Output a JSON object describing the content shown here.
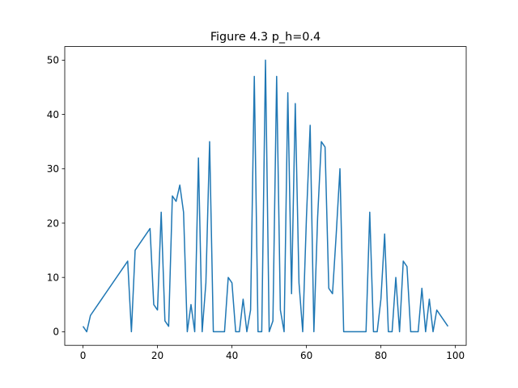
{
  "chart_data": {
    "type": "line",
    "title": "Figure 4.3 p_h=0.4",
    "xlabel": "",
    "ylabel": "",
    "xlim": [
      -4.9,
      102.9
    ],
    "ylim": [
      -2.5,
      52.5
    ],
    "xticks": [
      0,
      20,
      40,
      60,
      80,
      100
    ],
    "xtick_labels": [
      "0",
      "20",
      "40",
      "60",
      "80",
      "100"
    ],
    "yticks": [
      0,
      10,
      20,
      30,
      40,
      50
    ],
    "ytick_labels": [
      "0",
      "10",
      "20",
      "30",
      "40",
      "50"
    ],
    "grid": false,
    "legend": "none",
    "series": [
      {
        "color": "#1f77b4",
        "x": [
          0,
          1,
          2,
          12,
          13,
          14,
          18,
          19,
          20,
          21,
          22,
          23,
          24,
          25,
          26,
          27,
          28,
          29,
          30,
          31,
          32,
          33,
          34,
          35,
          36,
          37,
          38,
          39,
          40,
          41,
          42,
          43,
          44,
          45,
          46,
          47,
          48,
          49,
          50,
          51,
          52,
          53,
          54,
          55,
          56,
          57,
          58,
          59,
          60,
          61,
          62,
          63,
          64,
          65,
          66,
          67,
          68,
          69,
          70,
          76,
          77,
          78,
          79,
          80,
          81,
          82,
          83,
          84,
          85,
          86,
          87,
          88,
          89,
          90,
          91,
          92,
          93,
          94,
          95,
          98
        ],
        "y": [
          1,
          0,
          3,
          13,
          0,
          15,
          19,
          5,
          4,
          22,
          2,
          1,
          25,
          24,
          27,
          22,
          0,
          5,
          0,
          32,
          0,
          9,
          35,
          0,
          0,
          0,
          0,
          10,
          9,
          0,
          0,
          6,
          0,
          4,
          47,
          0,
          0,
          50,
          0,
          2,
          47,
          4,
          0,
          44,
          7,
          42,
          9,
          0,
          21,
          38,
          0,
          21,
          35,
          34,
          8,
          7,
          18,
          30,
          0,
          0,
          22,
          0,
          0,
          6,
          18,
          0,
          0,
          10,
          0,
          13,
          12,
          0,
          0,
          0,
          8,
          0,
          6,
          0,
          4,
          1
        ]
      }
    ]
  }
}
